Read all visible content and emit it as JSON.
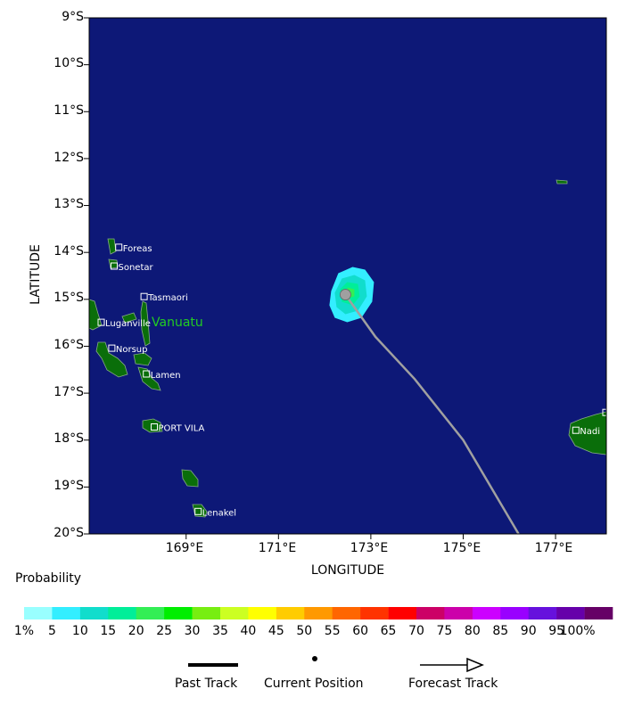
{
  "map": {
    "lat_ticks": [
      "9°S",
      "10°S",
      "11°S",
      "12°S",
      "13°S",
      "14°S",
      "15°S",
      "16°S",
      "17°S",
      "18°S",
      "19°S",
      "20°S"
    ],
    "lon_ticks": [
      "169°E",
      "171°E",
      "173°E",
      "175°E",
      "177°E"
    ],
    "xlabel": "LONGITUDE",
    "ylabel": "LATITUDE",
    "ocean_color": "#0d1877",
    "land_color": "#0a6e0a",
    "track_color": "#a0a0a0",
    "country_label": "Vanuatu",
    "country_label_color": "#22cc22",
    "places": [
      {
        "name": "Foreas",
        "lon": 167.55,
        "lat": -13.9
      },
      {
        "name": "Sonetar",
        "lon": 167.45,
        "lat": -14.3
      },
      {
        "name": "Tasmaori",
        "lon": 168.1,
        "lat": -14.95
      },
      {
        "name": "Luganville",
        "lon": 167.17,
        "lat": -15.5
      },
      {
        "name": "Norsup",
        "lon": 167.4,
        "lat": -16.05
      },
      {
        "name": "Lamen",
        "lon": 168.15,
        "lat": -16.6
      },
      {
        "name": "PORT VILA",
        "lon": 168.32,
        "lat": -17.73
      },
      {
        "name": "Lenakel",
        "lon": 169.27,
        "lat": -19.53
      },
      {
        "name": "Tavua",
        "lon": 178.1,
        "lat": -17.42
      },
      {
        "name": "Nadi",
        "lon": 177.45,
        "lat": -17.8
      }
    ],
    "current_position": {
      "lon": 172.45,
      "lat": -14.9
    },
    "forecast_track": [
      {
        "lon": 172.45,
        "lat": -14.9
      },
      {
        "lon": 173.1,
        "lat": -15.8
      },
      {
        "lon": 173.95,
        "lat": -16.7
      },
      {
        "lon": 175.0,
        "lat": -18.0
      },
      {
        "lon": 176.2,
        "lat": -20.0
      }
    ]
  },
  "colorbar": {
    "title": "Probability",
    "labels": [
      "1%",
      "5",
      "10",
      "15",
      "20",
      "25",
      "30",
      "35",
      "40",
      "45",
      "50",
      "55",
      "60",
      "65",
      "70",
      "75",
      "80",
      "85",
      "90",
      "95",
      "100%"
    ],
    "colors": [
      "#99ffff",
      "#33eeff",
      "#11ddcc",
      "#00ee99",
      "#33ee55",
      "#00ee00",
      "#77ee11",
      "#ccff22",
      "#ffff00",
      "#ffcc00",
      "#ff9900",
      "#ff6600",
      "#ff3300",
      "#ff0000",
      "#cc0066",
      "#cc00aa",
      "#cc00ff",
      "#9900ff",
      "#6611dd",
      "#6600aa",
      "#660066"
    ]
  },
  "legend": {
    "past_track": "Past Track",
    "current_position": "Current Position",
    "forecast_track": "Forecast Track"
  }
}
